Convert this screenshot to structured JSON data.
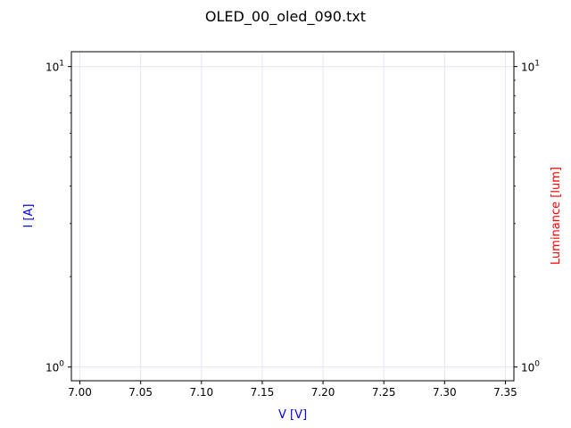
{
  "chart_data": {
    "type": "line",
    "title": "OLED_00_oled_090.txt",
    "xlabel": "V [V]",
    "ylabel": "I [A]",
    "y2label": "Luminance [lum]",
    "xlim": [
      6.993,
      7.357
    ],
    "ylim": [
      0.9,
      11.2
    ],
    "y2lim": [
      0.9,
      11.2
    ],
    "yscale": "log",
    "y2scale": "log",
    "x_ticks": [
      7.0,
      7.05,
      7.1,
      7.15,
      7.2,
      7.25,
      7.3,
      7.35
    ],
    "x_tick_labels": [
      "7.00",
      "7.05",
      "7.10",
      "7.15",
      "7.20",
      "7.25",
      "7.30",
      "7.35"
    ],
    "y_ticks": [
      1,
      10
    ],
    "y_tick_labels": [
      "10^0",
      "10^1"
    ],
    "y_minor_ticks": [
      2,
      3,
      4,
      5,
      6,
      7,
      8,
      9
    ],
    "grid": true,
    "series": [],
    "colors": {
      "xlabel": "#0000ff",
      "ylabel": "#0000ff",
      "y2label": "#ff0000",
      "grid": "#e6e6f5",
      "axes": "#000000"
    }
  }
}
